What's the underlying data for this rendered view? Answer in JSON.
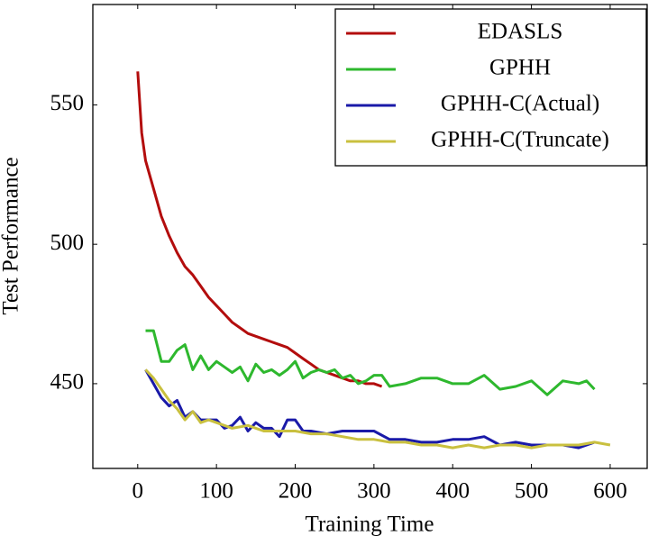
{
  "chart_data": {
    "type": "line",
    "x_label": "Training Time",
    "y_label": "Test Performance",
    "xlim": [
      -57,
      647
    ],
    "ylim": [
      419.6,
      586
    ],
    "xticks": [
      0,
      100,
      200,
      300,
      400,
      500,
      600
    ],
    "yticks": [
      450,
      500,
      550
    ],
    "legend": "upper right",
    "series": [
      {
        "name": "EDASLS",
        "color": "#b30d0d",
        "x": [
          0,
          5,
          10,
          20,
          30,
          40,
          50,
          60,
          70,
          80,
          90,
          100,
          110,
          120,
          130,
          140,
          150,
          160,
          170,
          180,
          190,
          200,
          210,
          220,
          230,
          240,
          250,
          260,
          270,
          280,
          290,
          300,
          310
        ],
        "values": [
          562,
          540,
          530,
          520,
          510,
          503,
          497,
          492,
          489,
          485,
          481,
          478,
          475,
          472,
          470,
          468,
          467,
          466,
          465,
          464,
          463,
          461,
          459,
          457,
          455,
          454,
          453,
          452,
          451,
          451,
          450,
          450,
          449
        ]
      },
      {
        "name": "GPHH",
        "color": "#2eb82e",
        "x": [
          10,
          20,
          30,
          40,
          50,
          60,
          70,
          80,
          90,
          100,
          110,
          120,
          130,
          140,
          150,
          160,
          170,
          180,
          190,
          200,
          210,
          220,
          230,
          240,
          250,
          260,
          270,
          280,
          290,
          300,
          310,
          320,
          340,
          360,
          380,
          400,
          420,
          440,
          460,
          480,
          500,
          520,
          540,
          560,
          570,
          580
        ],
        "values": [
          469,
          469,
          458,
          458,
          462,
          464,
          455,
          460,
          455,
          458,
          456,
          454,
          456,
          451,
          457,
          454,
          455,
          453,
          455,
          458,
          452,
          454,
          455,
          454,
          455,
          452,
          453,
          450,
          451,
          453,
          453,
          449,
          450,
          452,
          452,
          450,
          450,
          453,
          448,
          449,
          451,
          446,
          451,
          450,
          451,
          448
        ]
      },
      {
        "name": "GPHH-C(Actual)",
        "color": "#1a1aa8",
        "x": [
          10,
          20,
          30,
          40,
          50,
          60,
          70,
          80,
          90,
          100,
          110,
          120,
          130,
          140,
          150,
          160,
          170,
          180,
          190,
          200,
          210,
          220,
          240,
          260,
          280,
          300,
          320,
          340,
          360,
          380,
          400,
          420,
          440,
          460,
          480,
          500,
          520,
          540,
          560,
          580
        ],
        "values": [
          455,
          450,
          445,
          442,
          444,
          438,
          440,
          437,
          437,
          437,
          434,
          435,
          438,
          433,
          436,
          434,
          434,
          431,
          437,
          437,
          433,
          433,
          432,
          433,
          433,
          433,
          430,
          430,
          429,
          429,
          430,
          430,
          431,
          428,
          429,
          428,
          428,
          428,
          427,
          429
        ]
      },
      {
        "name": "GPHH-C(Truncate)",
        "color": "#c9c03f",
        "x": [
          10,
          20,
          30,
          40,
          50,
          60,
          70,
          80,
          90,
          100,
          120,
          140,
          160,
          180,
          200,
          220,
          240,
          260,
          280,
          300,
          320,
          340,
          360,
          380,
          400,
          420,
          440,
          460,
          480,
          500,
          520,
          540,
          560,
          580,
          600
        ],
        "values": [
          455,
          452,
          448,
          444,
          441,
          437,
          440,
          436,
          437,
          436,
          434,
          435,
          433,
          433,
          433,
          432,
          432,
          431,
          430,
          430,
          429,
          429,
          428,
          428,
          427,
          428,
          427,
          428,
          428,
          427,
          428,
          428,
          428,
          429,
          428
        ]
      }
    ]
  }
}
